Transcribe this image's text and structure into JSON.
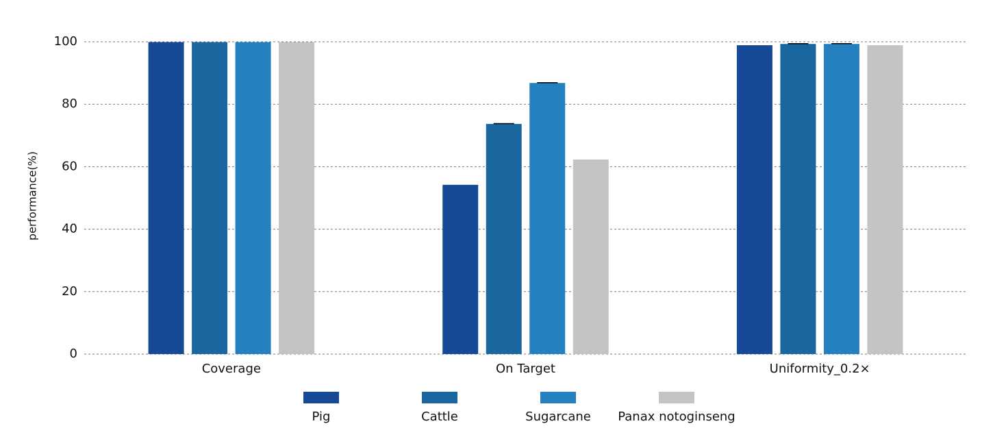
{
  "chart_data": {
    "type": "bar",
    "y_label": "performance(%)",
    "categories": [
      "Coverage",
      "On Target",
      "Uniformity_0.2×"
    ],
    "series": [
      {
        "name": "Pig",
        "color": "#174a96",
        "values": [
          99.9,
          54.2,
          98.9
        ],
        "errors": [
          null,
          null,
          null
        ]
      },
      {
        "name": "Cattle",
        "color": "#1a67a0",
        "values": [
          99.9,
          73.7,
          99.3
        ],
        "errors": [
          null,
          0.1,
          0.1
        ]
      },
      {
        "name": "Sugarcane",
        "color": "#2580c0",
        "values": [
          99.9,
          86.8,
          99.3
        ],
        "errors": [
          null,
          0.1,
          0.1
        ]
      },
      {
        "name": "Panax notoginseng",
        "color": "#c4c4c4",
        "values": [
          99.9,
          62.3,
          98.9
        ],
        "errors": [
          null,
          null,
          null
        ]
      }
    ],
    "ylim": [
      0,
      100
    ],
    "yticks": [
      0,
      20,
      40,
      60,
      80,
      100
    ],
    "grid": true,
    "legend": "bottom"
  }
}
